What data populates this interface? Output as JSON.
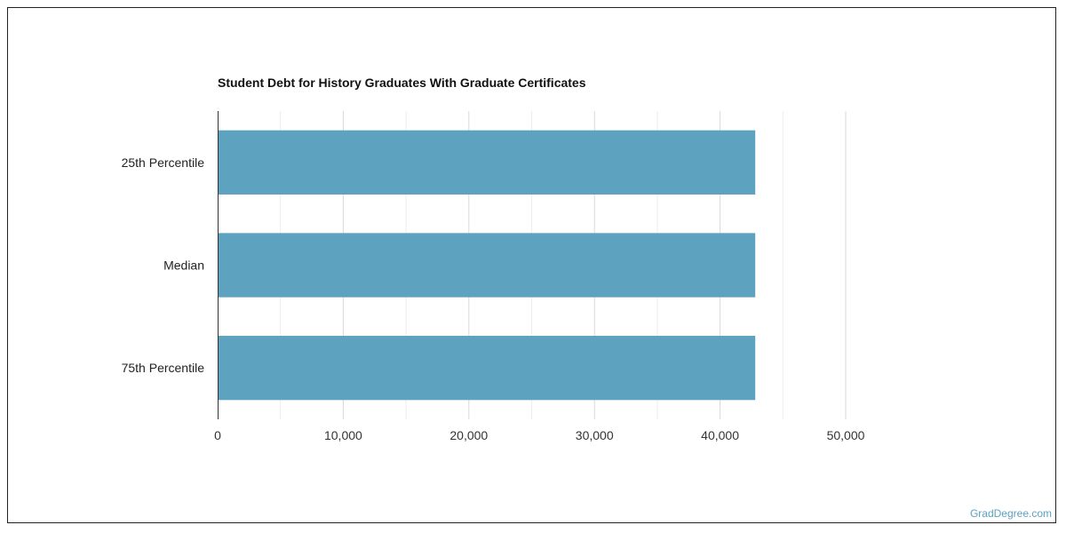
{
  "chart_data": {
    "type": "bar",
    "orientation": "horizontal",
    "title": "Student Debt for History Graduates With Graduate Certificates",
    "categories": [
      "25th Percentile",
      "Median",
      "75th Percentile"
    ],
    "values": [
      42800,
      42800,
      42800
    ],
    "xlabel": "",
    "ylabel": "",
    "xlim": [
      0,
      50000
    ],
    "xticks": [
      0,
      10000,
      20000,
      30000,
      40000,
      50000
    ],
    "xtick_labels": [
      "0",
      "10,000",
      "20,000",
      "30,000",
      "40,000",
      "50,000"
    ],
    "grid": true,
    "bar_color": "#5da2bf"
  },
  "watermark": "GradDegree.com"
}
